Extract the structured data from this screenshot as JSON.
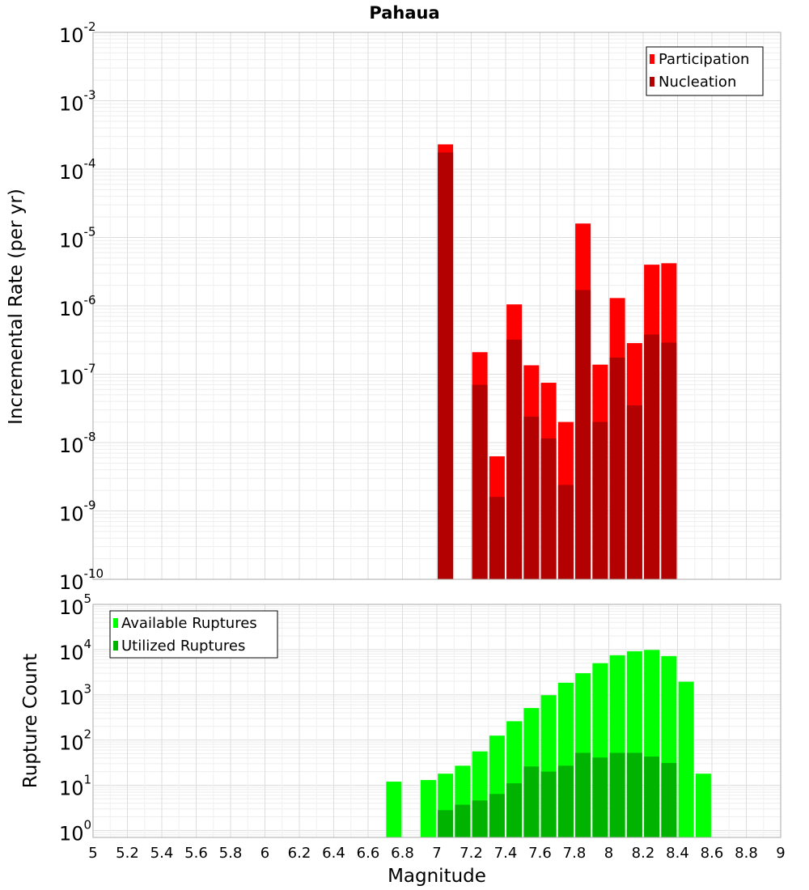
{
  "chart_data": [
    {
      "type": "bar",
      "title": "Pahaua",
      "ylabel": "Incremental Rate (per yr)",
      "xlabel": "",
      "yscale": "log",
      "ylim": [
        1e-10,
        0.01
      ],
      "xlim": [
        5,
        9
      ],
      "y_tick_exponents": [
        "-10",
        "-9",
        "-8",
        "-7",
        "-6",
        "-5",
        "-4",
        "-3",
        "-2"
      ],
      "grid": true,
      "legend_position": "top-right",
      "series": [
        {
          "name": "Participation",
          "color": "#ff0000",
          "x": [
            7.05,
            7.25,
            7.35,
            7.45,
            7.55,
            7.65,
            7.75,
            7.85,
            7.95,
            8.05,
            8.15,
            8.25,
            8.35
          ],
          "values": [
            0.00023,
            2.1e-07,
            6.3e-09,
            1.05e-06,
            1.35e-07,
            7.5e-08,
            2e-08,
            1.6e-05,
            1.38e-07,
            1.3e-06,
            2.85e-07,
            4e-06,
            4.2e-06
          ]
        },
        {
          "name": "Nucleation",
          "color": "#b30000",
          "x": [
            7.05,
            7.25,
            7.35,
            7.45,
            7.55,
            7.65,
            7.75,
            7.85,
            7.95,
            8.05,
            8.15,
            8.25,
            8.35
          ],
          "values": [
            0.000175,
            7e-08,
            1.6e-09,
            3.2e-07,
            2.4e-08,
            1.15e-08,
            2.4e-09,
            1.7e-06,
            2e-08,
            1.75e-07,
            3.5e-08,
            3.8e-07,
            2.9e-07
          ]
        }
      ]
    },
    {
      "type": "bar",
      "title": "",
      "ylabel": "Rupture Count",
      "xlabel": "Magnitude",
      "yscale": "log",
      "ylim": [
        0.7,
        100000
      ],
      "xlim": [
        5,
        9
      ],
      "x_ticks": [
        "5",
        "5.2",
        "5.4",
        "5.6",
        "5.8",
        "6",
        "6.2",
        "6.4",
        "6.6",
        "6.8",
        "7",
        "7.2",
        "7.4",
        "7.6",
        "7.8",
        "8",
        "8.2",
        "8.4",
        "8.6",
        "8.8",
        "9"
      ],
      "y_tick_exponents": [
        "0",
        "1",
        "2",
        "3",
        "4",
        "5"
      ],
      "grid": true,
      "legend_position": "top-left",
      "series": [
        {
          "name": "Available Ruptures",
          "color": "#00ff00",
          "x": [
            6.75,
            6.95,
            7.05,
            7.15,
            7.25,
            7.35,
            7.45,
            7.55,
            7.65,
            7.75,
            7.85,
            7.95,
            8.05,
            8.15,
            8.25,
            8.35,
            8.45,
            8.55
          ],
          "values": [
            12,
            13,
            18,
            27,
            56,
            125,
            260,
            510,
            980,
            1850,
            3000,
            5000,
            7500,
            9200,
            9800,
            7200,
            1950,
            18
          ]
        },
        {
          "name": "Utilized Ruptures",
          "color": "#00b300",
          "x": [
            7.05,
            7.15,
            7.25,
            7.35,
            7.45,
            7.55,
            7.65,
            7.75,
            7.85,
            7.95,
            8.05,
            8.15,
            8.25,
            8.35
          ],
          "values": [
            2.8,
            3.7,
            4.6,
            6.4,
            11,
            26,
            20,
            27,
            52,
            41,
            52,
            52,
            43,
            31
          ]
        }
      ]
    }
  ]
}
